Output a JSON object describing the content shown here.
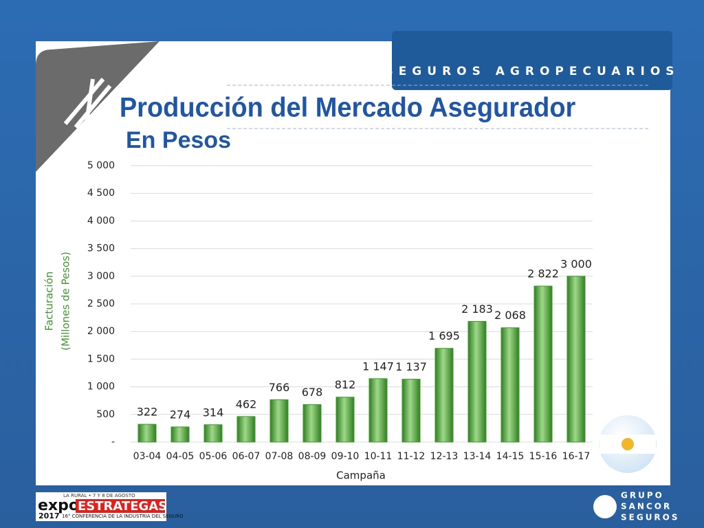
{
  "banner": "SEGUROS AGROPECUARIOS",
  "footer": {
    "event_top": "LA RURAL • 7 Y 8 DE AGOSTO",
    "event_expo": "expo",
    "event_name": "ESTRATEGAS",
    "event_year": "2017",
    "event_sub": "16° CONFERENCIA DE LA INDUSTRIA DEL SEGURO",
    "brand": [
      "GRUPO",
      "SANCOR",
      "SEGUROS"
    ]
  },
  "chart_data": {
    "type": "bar",
    "title": "Producción del Mercado Asegurador",
    "subtitle": "En Pesos",
    "y_label": [
      "Facturación",
      "(Millones de Pesos)"
    ],
    "x_label": "Campaña",
    "categories": [
      "03-04",
      "04-05",
      "05-06",
      "06-07",
      "07-08",
      "08-09",
      "09-10",
      "10-11",
      "11-12",
      "12-13",
      "13-14",
      "14-15",
      "15-16",
      "16-17"
    ],
    "values": [
      322,
      274,
      314,
      462,
      766,
      678,
      812,
      1147,
      1137,
      1695,
      2183,
      2068,
      2822,
      3000
    ],
    "value_labels": [
      "322",
      "274",
      "314",
      "462",
      "766",
      "678",
      "812",
      "1 147",
      "1 137",
      "1 695",
      "2 183",
      "2 068",
      "2 822",
      "3 000"
    ],
    "color": "#3f9a2e",
    "ylim": [
      0,
      5000
    ],
    "yticks": [
      {
        "value": 0,
        "label": "-"
      },
      500,
      {
        "value": 1000,
        "label": "1 000"
      },
      {
        "value": 1500,
        "label": "1 500"
      },
      {
        "value": 2000,
        "label": "2 000"
      },
      {
        "value": 2500,
        "label": "2 500"
      },
      {
        "value": 3000,
        "label": "3 000"
      },
      {
        "value": 3500,
        "label": "3 500"
      },
      {
        "value": 4000,
        "label": "4 000"
      },
      {
        "value": 4500,
        "label": "4 500"
      },
      {
        "value": 5000,
        "label": "5 000"
      }
    ],
    "grid": true
  }
}
